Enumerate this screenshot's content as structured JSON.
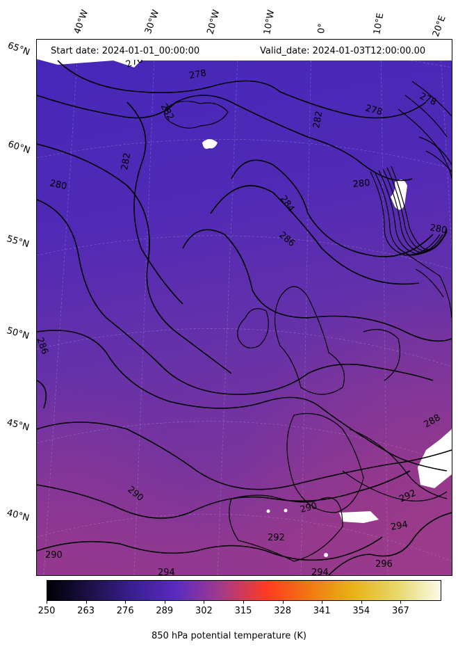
{
  "header": {
    "start_date": "Start date: 2024-01-01_00:00:00",
    "valid_date": "Valid_date: 2024-01-03T12:00:00.00"
  },
  "longitude_labels": [
    "40°W",
    "30°W",
    "20°W",
    "10°W",
    "0°",
    "10°E",
    "20°E"
  ],
  "latitude_labels": [
    "65°N",
    "60°N",
    "55°N",
    "50°N",
    "45°N",
    "40°N"
  ],
  "contour_labels": [
    "278",
    "278",
    "278",
    "276",
    "280",
    "280",
    "280",
    "282",
    "282",
    "282",
    "284",
    "286",
    "286",
    "288",
    "290",
    "290",
    "290",
    "292",
    "292",
    "294",
    "294",
    "294",
    "296"
  ],
  "colorbar": {
    "ticks": [
      "250",
      "263",
      "276",
      "289",
      "302",
      "315",
      "328",
      "341",
      "354",
      "367"
    ],
    "title": "850 hPa potential temperature (K)",
    "colormap": [
      "#000004",
      "#1d1147",
      "#3a1f93",
      "#5b2bc0",
      "#a23a8c",
      "#ff3b20",
      "#f07a12",
      "#e8b417",
      "#e7d86a",
      "#fbfbe8"
    ]
  },
  "colors": {
    "field_north": "#4a2cb8",
    "field_mid": "#6a31a8",
    "field_south": "#8a3490",
    "contour": "#000000",
    "masked": "#ffffff"
  }
}
